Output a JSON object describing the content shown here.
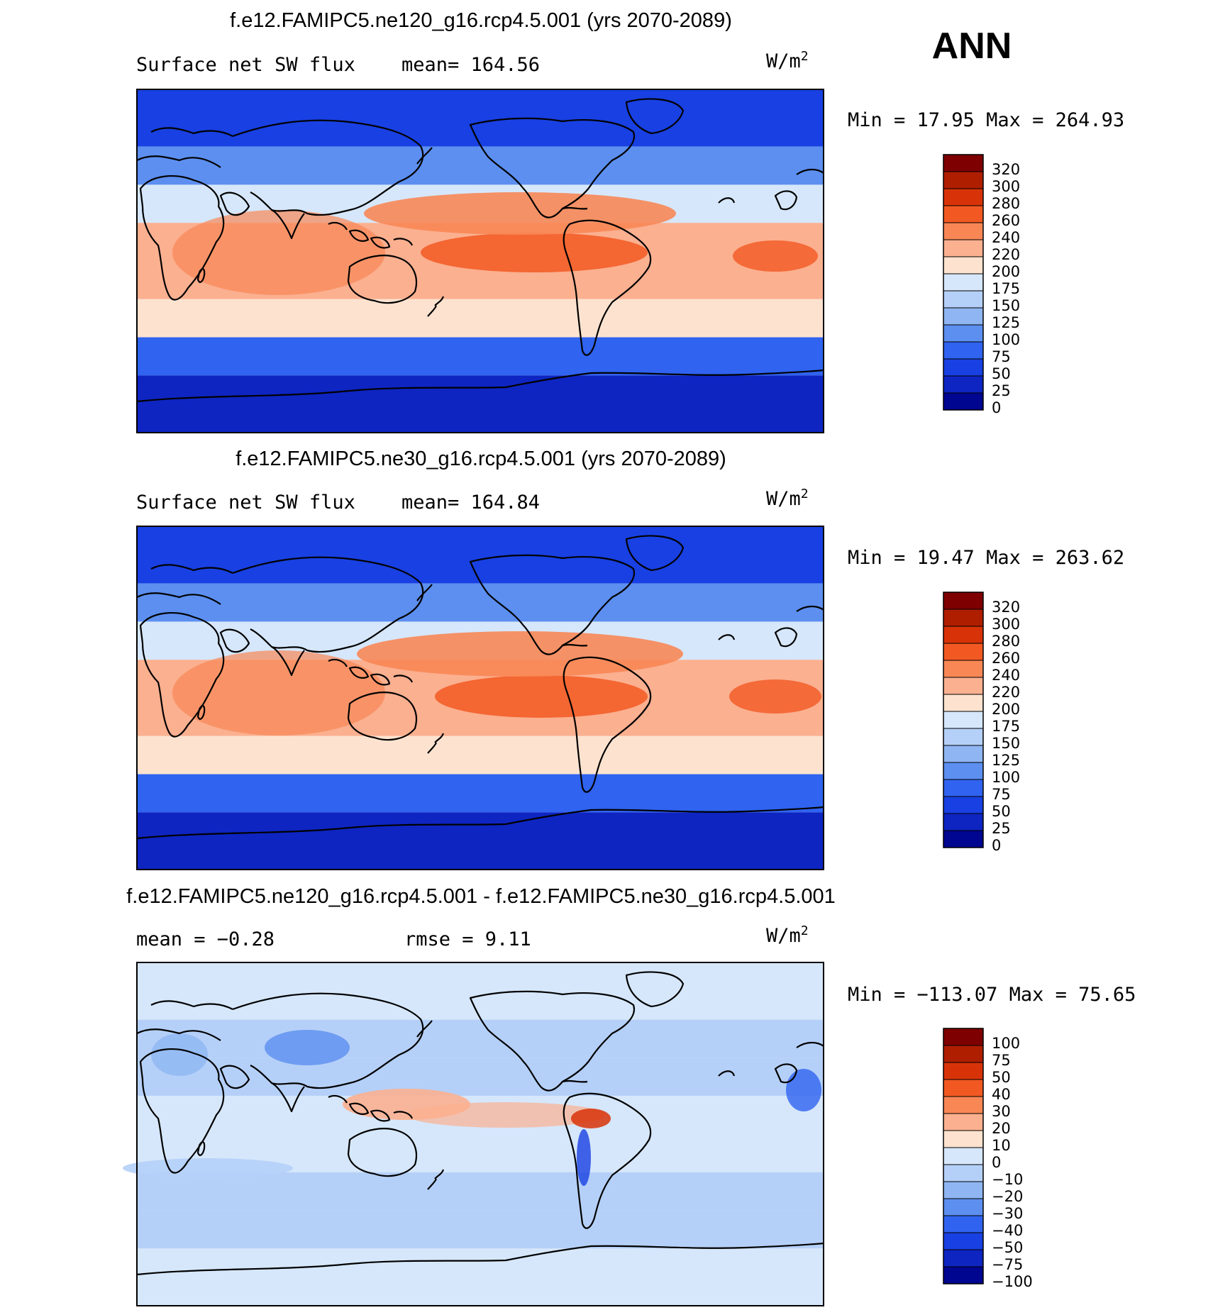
{
  "season": "ANN",
  "colors": {
    "ocean_blue_light": "#d6e7fb",
    "coast": "#000000"
  },
  "chart_data": [
    {
      "type": "heatmap",
      "title": "f.e12.FAMIPC5.ne120_g16.rcp4.5.001 (yrs 2070-2089)",
      "left_label": "Surface net SW flux",
      "stat_label": "mean= 164.56",
      "stat_label2": "",
      "units_text": "W/m",
      "units_sup": "2",
      "minmax_label": "Min =   17.95 Max = 264.93",
      "min": 17.95,
      "max": 264.93,
      "mean": 164.56,
      "colorbar": {
        "levels": [
          "320",
          "300",
          "280",
          "260",
          "240",
          "220",
          "200",
          "175",
          "150",
          "125",
          "100",
          "75",
          "50",
          "25",
          "0"
        ],
        "colors": [
          "#7f0000",
          "#b01e00",
          "#d83308",
          "#f25922",
          "#f88755",
          "#fbb090",
          "#fde3cf",
          "#d6e7fb",
          "#b5d0f8",
          "#8fb6f3",
          "#5c8ff0",
          "#2f63f0",
          "#1840e2",
          "#0e25c2",
          "#00068f"
        ]
      },
      "zones": [
        {
          "lat_band": "60N-90N",
          "value": 50
        },
        {
          "lat_band": "40N-60N",
          "value": 110
        },
        {
          "lat_band": "20N-40N",
          "value": 185
        },
        {
          "lat_band": "20S-20N",
          "value": 225
        },
        {
          "lat_band": "20S-40S",
          "value": 200
        },
        {
          "lat_band": "40S-60S",
          "value": 90
        },
        {
          "lat_band": "60S-90S",
          "value": 35
        }
      ]
    },
    {
      "type": "heatmap",
      "title": "f.e12.FAMIPC5.ne30_g16.rcp4.5.001 (yrs 2070-2089)",
      "left_label": "Surface net SW flux",
      "stat_label": "mean= 164.84",
      "stat_label2": "",
      "units_text": "W/m",
      "units_sup": "2",
      "minmax_label": "Min =   19.47 Max = 263.62",
      "min": 19.47,
      "max": 263.62,
      "mean": 164.84,
      "colorbar": {
        "levels": [
          "320",
          "300",
          "280",
          "260",
          "240",
          "220",
          "200",
          "175",
          "150",
          "125",
          "100",
          "75",
          "50",
          "25",
          "0"
        ],
        "colors": [
          "#7f0000",
          "#b01e00",
          "#d83308",
          "#f25922",
          "#f88755",
          "#fbb090",
          "#fde3cf",
          "#d6e7fb",
          "#b5d0f8",
          "#8fb6f3",
          "#5c8ff0",
          "#2f63f0",
          "#1840e2",
          "#0e25c2",
          "#00068f"
        ]
      },
      "zones": [
        {
          "lat_band": "60N-90N",
          "value": 50
        },
        {
          "lat_band": "40N-60N",
          "value": 110
        },
        {
          "lat_band": "20N-40N",
          "value": 185
        },
        {
          "lat_band": "20S-20N",
          "value": 225
        },
        {
          "lat_band": "20S-40S",
          "value": 200
        },
        {
          "lat_band": "40S-60S",
          "value": 90
        },
        {
          "lat_band": "60S-90S",
          "value": 35
        }
      ]
    },
    {
      "type": "heatmap",
      "title": "f.e12.FAMIPC5.ne120_g16.rcp4.5.001 - f.e12.FAMIPC5.ne30_g16.rcp4.5.001",
      "left_label": "mean =   −0.28",
      "stat_label": "rmse =    9.11",
      "stat_label2": "",
      "units_text": "W/m",
      "units_sup": "2",
      "minmax_label": "Min = −113.07 Max =   75.65",
      "min": -113.07,
      "max": 75.65,
      "mean": -0.28,
      "rmse": 9.11,
      "colorbar": {
        "levels": [
          "100",
          "75",
          "50",
          "40",
          "30",
          "20",
          "10",
          "0",
          "−10",
          "−20",
          "−30",
          "−40",
          "−50",
          "−75",
          "−100"
        ],
        "colors": [
          "#7f0000",
          "#b01e00",
          "#d83308",
          "#f25922",
          "#f88755",
          "#fbb090",
          "#fde3cf",
          "#d6e7fb",
          "#b5d0f8",
          "#8fb6f3",
          "#5c8ff0",
          "#2f63f0",
          "#1840e2",
          "#0e25c2",
          "#00068f"
        ]
      },
      "zones": [
        {
          "lat_band": "60N-90N",
          "value": 2
        },
        {
          "lat_band": "40N-60N",
          "value": -2
        },
        {
          "lat_band": "20N-40N",
          "value": -3
        },
        {
          "lat_band": "20S-20N",
          "value": 5
        },
        {
          "lat_band": "20S-40S",
          "value": -3
        },
        {
          "lat_band": "40S-60S",
          "value": -4
        },
        {
          "lat_band": "60S-90S",
          "value": 3
        }
      ]
    }
  ]
}
